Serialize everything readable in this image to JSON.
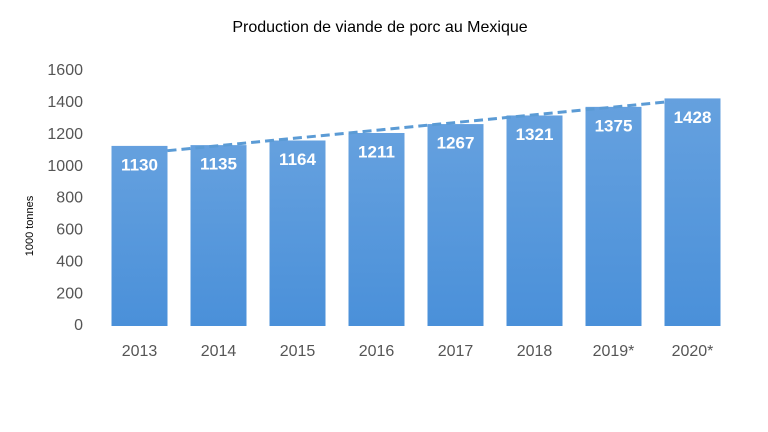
{
  "chart_data": {
    "type": "bar",
    "title": "Production de viande de porc au Mexique",
    "y_label": "1000 tonnes",
    "categories": [
      "2013",
      "2014",
      "2015",
      "2016",
      "2017",
      "2018",
      "2019*",
      "2020*"
    ],
    "values": [
      1130,
      1135,
      1164,
      1211,
      1267,
      1321,
      1375,
      1428
    ],
    "color": "#4a90d9",
    "trend": {
      "values": [
        1100,
        1405
      ],
      "color": "#5b9bd5"
    },
    "ylim": [
      0,
      1600
    ],
    "yticks": [
      0,
      200,
      400,
      600,
      800,
      1000,
      1200,
      1400,
      1600
    ],
    "grid": false
  }
}
